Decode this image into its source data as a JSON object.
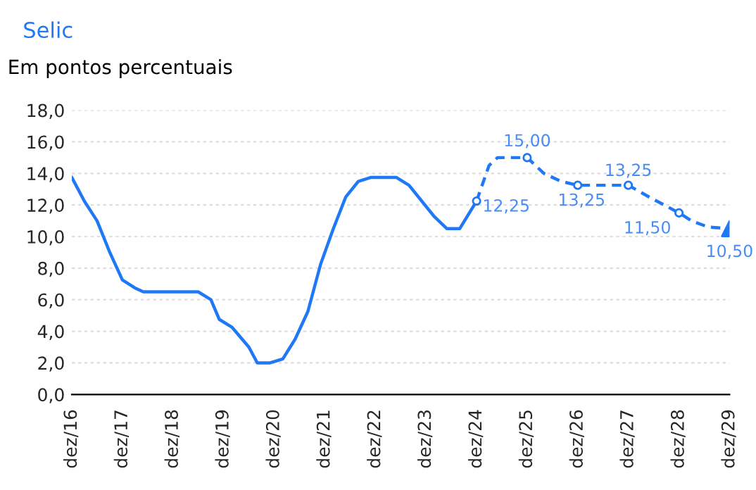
{
  "chart_data": {
    "type": "line",
    "title": "Selic",
    "subtitle": "Em pontos percentuais",
    "xlim": [
      "2016-12",
      "2029-12"
    ],
    "xticks": [
      {
        "value": "2016-12",
        "label": "dez/16"
      },
      {
        "value": "2017-12",
        "label": "dez/17"
      },
      {
        "value": "2018-12",
        "label": "dez/18"
      },
      {
        "value": "2019-12",
        "label": "dez/19"
      },
      {
        "value": "2020-12",
        "label": "dez/20"
      },
      {
        "value": "2021-12",
        "label": "dez/21"
      },
      {
        "value": "2022-12",
        "label": "dez/22"
      },
      {
        "value": "2023-12",
        "label": "dez/23"
      },
      {
        "value": "2024-12",
        "label": "dez/24"
      },
      {
        "value": "2025-12",
        "label": "dez/25"
      },
      {
        "value": "2026-12",
        "label": "dez/26"
      },
      {
        "value": "2027-12",
        "label": "dez/27"
      },
      {
        "value": "2028-12",
        "label": "dez/28"
      },
      {
        "value": "2029-12",
        "label": "dez/29"
      }
    ],
    "ylim": [
      0,
      18
    ],
    "yticks": [
      {
        "value": 0,
        "label": "0,0"
      },
      {
        "value": 2,
        "label": "2,0"
      },
      {
        "value": 4,
        "label": "4,0"
      },
      {
        "value": 6,
        "label": "6,0"
      },
      {
        "value": 8,
        "label": "8,0"
      },
      {
        "value": 10,
        "label": "10,0"
      },
      {
        "value": 12,
        "label": "12,0"
      },
      {
        "value": 14,
        "label": "14,0"
      },
      {
        "value": 16,
        "label": "16,0"
      },
      {
        "value": 18,
        "label": "18,0"
      }
    ],
    "grid": "y",
    "series": [
      {
        "type": "line",
        "color": "#1f78f5",
        "line_style": "solid",
        "x": [
          "2016-12",
          "2017-03",
          "2017-06",
          "2017-09",
          "2017-12",
          "2018-03",
          "2018-05",
          "2019-06",
          "2019-09",
          "2019-11",
          "2020-02",
          "2020-06",
          "2020-08",
          "2020-11",
          "2021-02",
          "2021-05",
          "2021-08",
          "2021-11",
          "2022-02",
          "2022-05",
          "2022-08",
          "2022-11",
          "2023-05",
          "2023-08",
          "2024-02",
          "2024-05",
          "2024-08",
          "2024-12"
        ],
        "values": [
          13.75,
          12.25,
          11.0,
          9.0,
          7.25,
          6.75,
          6.5,
          6.5,
          6.0,
          4.75,
          4.25,
          3.0,
          2.0,
          2.0,
          2.25,
          3.5,
          5.25,
          8.25,
          10.5,
          12.5,
          13.5,
          13.75,
          13.75,
          13.25,
          11.25,
          10.5,
          10.5,
          12.25
        ]
      },
      {
        "type": "line",
        "color": "#1f78f5",
        "line_style": "dashed",
        "x": [
          "2024-12",
          "2025-03",
          "2025-05",
          "2025-08",
          "2025-12",
          "2026-04",
          "2026-08",
          "2026-12",
          "2027-05",
          "2027-12",
          "2028-05",
          "2028-12",
          "2029-03",
          "2029-07",
          "2029-12"
        ],
        "values": [
          12.25,
          14.5,
          15.0,
          15.0,
          15.0,
          14.0,
          13.5,
          13.25,
          13.25,
          13.25,
          12.5,
          11.5,
          11.0,
          10.6,
          10.5
        ]
      },
      {
        "type": "scatter",
        "color": "#1f78f5",
        "marker": "circle",
        "x": [
          "2024-12",
          "2025-12",
          "2026-12",
          "2027-12",
          "2028-12"
        ],
        "values": [
          12.25,
          15.0,
          13.25,
          13.25,
          11.5
        ],
        "value_labels": [
          "12,25",
          "15,00",
          "13,25",
          "13,25",
          "11,50"
        ]
      },
      {
        "type": "scatter",
        "color": "#1f78f5",
        "marker": "triangle",
        "x": [
          "2029-12"
        ],
        "values": [
          10.5
        ],
        "value_labels": [
          "10,50"
        ]
      }
    ]
  }
}
